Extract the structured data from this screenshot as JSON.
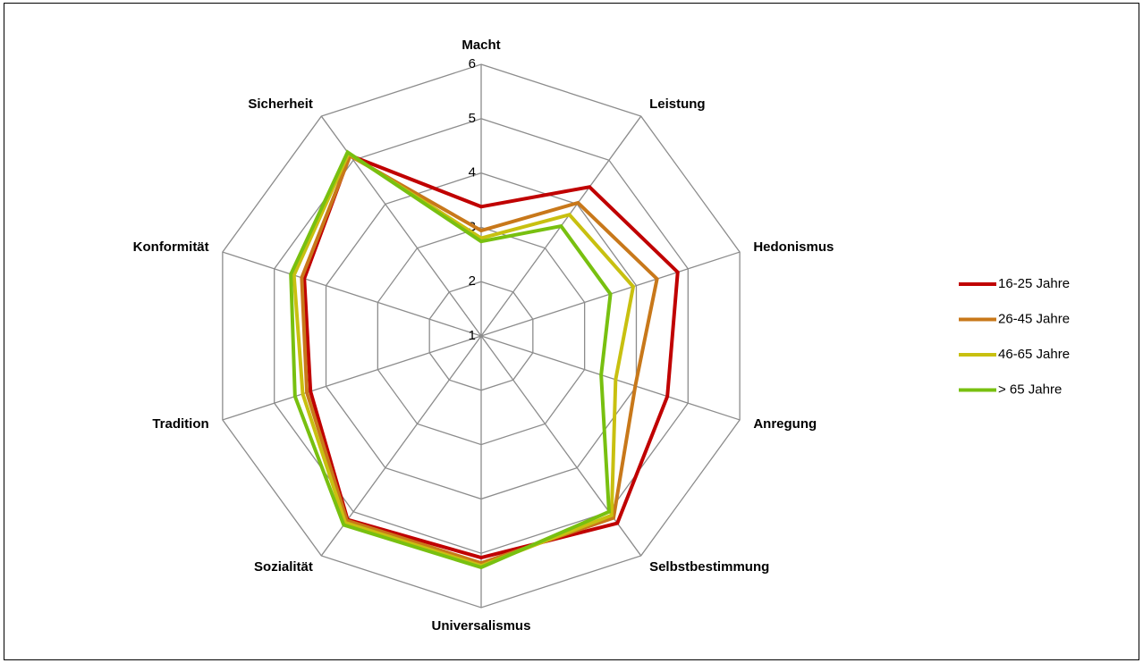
{
  "chart_data": {
    "type": "radar",
    "categories": [
      "Macht",
      "Leistung",
      "Hedonismus",
      "Anregung",
      "Selbstbestimmung",
      "Universalismus",
      "Sozialität",
      "Tradition",
      "Konformität",
      "Sicherheit"
    ],
    "series": [
      {
        "name": "16-25 Jahre",
        "color": "#c00000",
        "values": [
          3.38,
          4.39,
          4.8,
          4.6,
          5.26,
          5.08,
          5.18,
          4.3,
          4.42,
          5.11
        ]
      },
      {
        "name": "26-45 Jahre",
        "color": "#c8781a",
        "values": [
          2.94,
          4.03,
          4.4,
          3.98,
          5.14,
          5.18,
          5.2,
          4.37,
          4.47,
          5.1
        ]
      },
      {
        "name": "46-65 Jahre",
        "color": "#c8c010",
        "values": [
          2.8,
          3.76,
          3.94,
          3.6,
          5.08,
          5.23,
          5.25,
          4.45,
          4.62,
          5.15
        ]
      },
      {
        "name": "> 65 Jahre",
        "color": "#78c010",
        "values": [
          2.74,
          3.5,
          3.5,
          3.32,
          5.0,
          5.26,
          5.3,
          4.6,
          4.68,
          5.18
        ]
      }
    ],
    "ylim": [
      1,
      6
    ],
    "yticks": [
      1,
      2,
      3,
      4,
      5,
      6
    ],
    "grid": true,
    "legend": "right"
  }
}
